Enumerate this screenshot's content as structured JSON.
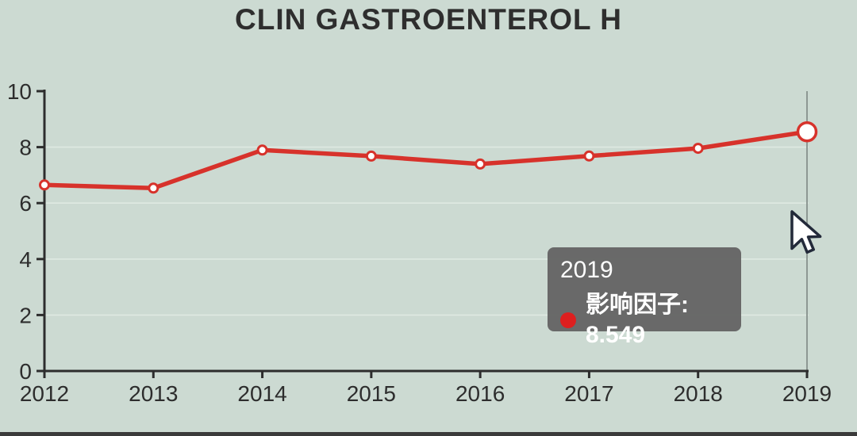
{
  "title": "CLIN GASTROENTEROL H",
  "tooltip": {
    "line1": "2019",
    "line2": "影响因子: 8.549",
    "marker_color": "#dd1f1f"
  },
  "colors": {
    "background": "#ccdad2",
    "line": "#d7322b",
    "point_fill": "#ffffff",
    "axis": "#2d2d2d",
    "grid": "#dfe9e2",
    "crosshair": "#8d9893",
    "tooltip_bg": "#656565",
    "tooltip_text": "#ffffff",
    "title_text": "#2e2e2e"
  },
  "chart_data": {
    "type": "line",
    "title": "CLIN GASTROENTEROL H",
    "x": [
      "2012",
      "2013",
      "2014",
      "2015",
      "2016",
      "2017",
      "2018",
      "2019"
    ],
    "series": [
      {
        "name": "影响因子",
        "values": [
          6.648,
          6.534,
          7.896,
          7.681,
          7.398,
          7.683,
          7.958,
          8.549
        ]
      }
    ],
    "ylim": [
      0,
      10
    ],
    "yticks": [
      0,
      2,
      4,
      6,
      8,
      10
    ],
    "grid": true,
    "legend": "none",
    "highlight_index": 7,
    "highlight_value_label": "8.549"
  }
}
